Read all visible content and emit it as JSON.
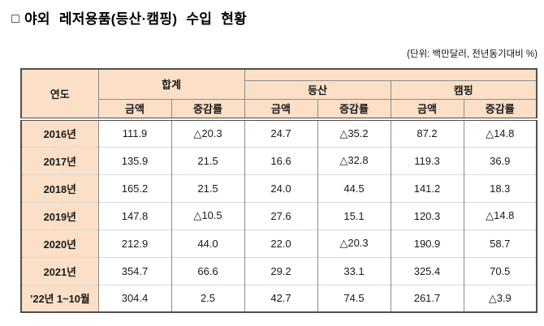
{
  "title": {
    "bullet": "□",
    "text": "야외 레저용품(등산·캠핑)",
    "emphasis": "수입 현황"
  },
  "unit_note": "(단위: 백만달러, 전년동기대비 %)",
  "table": {
    "year_header": "연도",
    "groups": [
      {
        "label": "합계"
      },
      {
        "label": "등산"
      },
      {
        "label": "캠핑"
      }
    ],
    "subheaders": [
      "금액",
      "증감률"
    ],
    "rows": [
      {
        "year": "2016년",
        "values": [
          "111.9",
          "△20.3",
          "24.7",
          "△35.2",
          "87.2",
          "△14.8"
        ]
      },
      {
        "year": "2017년",
        "values": [
          "135.9",
          "21.5",
          "16.6",
          "△32.8",
          "119.3",
          "36.9"
        ]
      },
      {
        "year": "2018년",
        "values": [
          "165.2",
          "21.5",
          "24.0",
          "44.5",
          "141.2",
          "18.3"
        ]
      },
      {
        "year": "2019년",
        "values": [
          "147.8",
          "△10.5",
          "27.6",
          "15.1",
          "120.3",
          "△14.8"
        ]
      },
      {
        "year": "2020년",
        "values": [
          "212.9",
          "44.0",
          "22.0",
          "△20.3",
          "190.9",
          "58.7"
        ]
      },
      {
        "year": "2021년",
        "values": [
          "354.7",
          "66.6",
          "29.2",
          "33.1",
          "325.4",
          "70.5"
        ]
      },
      {
        "year": "’22년 1~10월",
        "values": [
          "304.4",
          "2.5",
          "42.7",
          "74.5",
          "261.7",
          "△3.9"
        ]
      }
    ]
  },
  "colors": {
    "header_bg": "#fbdfc7",
    "border_dark": "#4f4f4f",
    "border_mid": "#8c8c8c",
    "row_divider": "#b5b5b5"
  }
}
